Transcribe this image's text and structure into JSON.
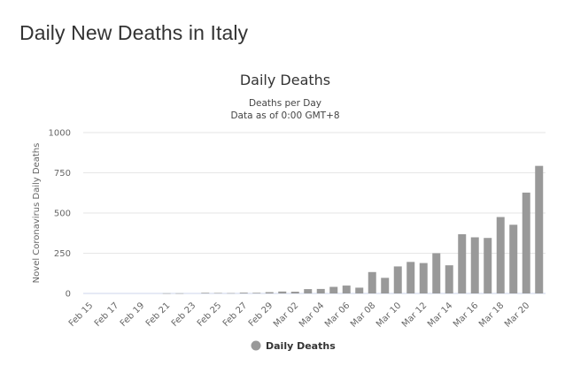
{
  "page": {
    "title": "Daily New Deaths in Italy"
  },
  "chart_data": {
    "type": "bar",
    "title": "Daily Deaths",
    "subtitle_lines": [
      "Deaths per Day",
      "Data as of 0:00 GMT+8"
    ],
    "ylabel": "Novel Coronavirus Daily Deaths",
    "ylim": [
      0,
      1000
    ],
    "yticks": [
      0,
      250,
      500,
      750,
      1000
    ],
    "grid": true,
    "legend_position": "bottom-center",
    "bar_color": "#999999",
    "categories": [
      "Feb 15",
      "Feb 16",
      "Feb 17",
      "Feb 18",
      "Feb 19",
      "Feb 20",
      "Feb 21",
      "Feb 22",
      "Feb 23",
      "Feb 24",
      "Feb 25",
      "Feb 26",
      "Feb 27",
      "Feb 28",
      "Feb 29",
      "Mar 01",
      "Mar 02",
      "Mar 03",
      "Mar 04",
      "Mar 05",
      "Mar 06",
      "Mar 07",
      "Mar 08",
      "Mar 09",
      "Mar 10",
      "Mar 11",
      "Mar 12",
      "Mar 13",
      "Mar 14",
      "Mar 15",
      "Mar 16",
      "Mar 17",
      "Mar 18",
      "Mar 19",
      "Mar 20",
      "Mar 21"
    ],
    "xtick_labels": [
      "Feb 15",
      "Feb 17",
      "Feb 19",
      "Feb 21",
      "Feb 23",
      "Feb 25",
      "Feb 27",
      "Feb 29",
      "Mar 02",
      "Mar 04",
      "Mar 06",
      "Mar 08",
      "Mar 10",
      "Mar 12",
      "Mar 14",
      "Mar 16",
      "Mar 18",
      "Mar 20"
    ],
    "series": [
      {
        "name": "Daily Deaths",
        "values": [
          0,
          0,
          0,
          0,
          0,
          0,
          1,
          1,
          0,
          4,
          3,
          2,
          5,
          4,
          8,
          12,
          11,
          27,
          28,
          41,
          49,
          36,
          133,
          97,
          168,
          196,
          189,
          250,
          175,
          368,
          349,
          345,
          475,
          427,
          627,
          793
        ]
      }
    ]
  }
}
